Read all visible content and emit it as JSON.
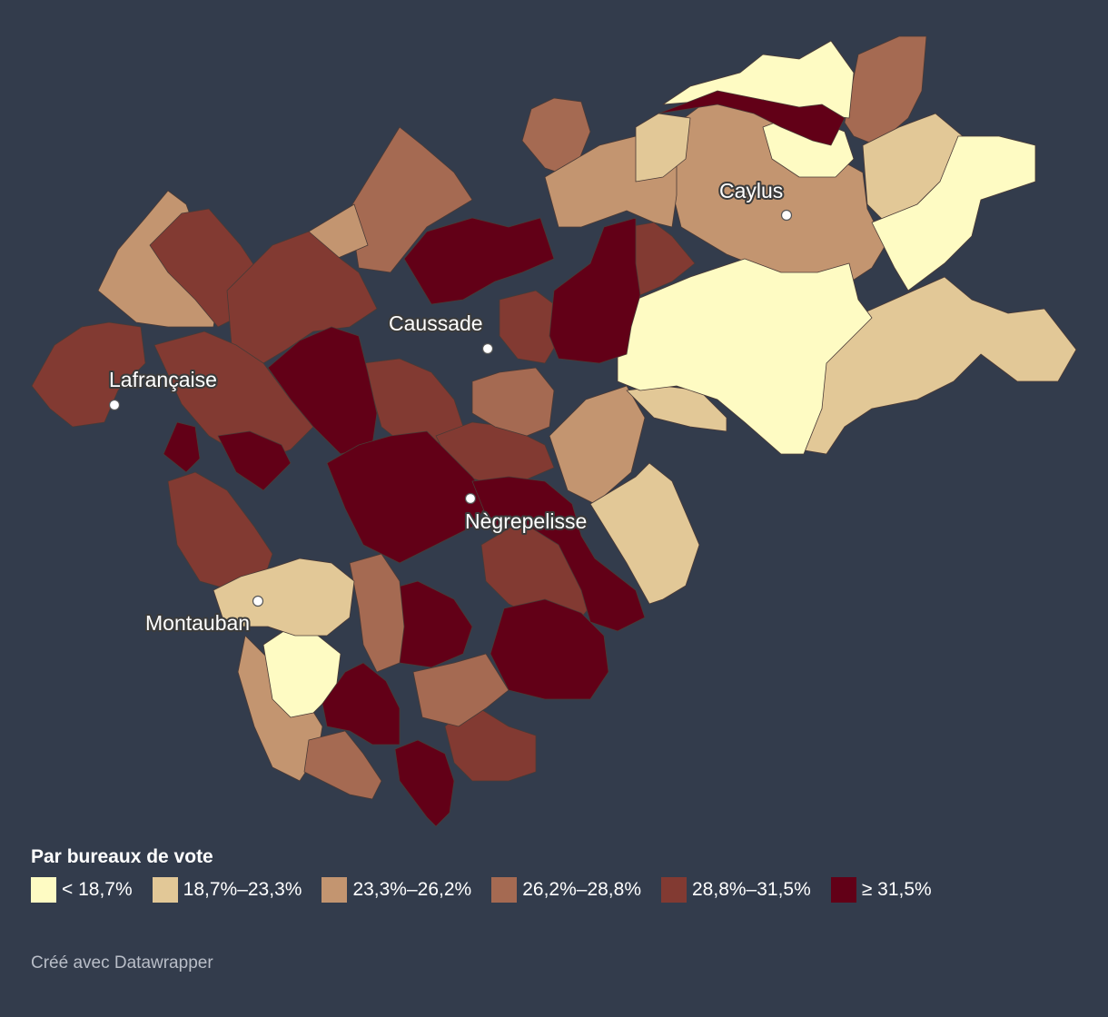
{
  "legend": {
    "title": "Par bureaux de vote",
    "items": [
      {
        "label": "< 18,7%",
        "color": "#fefbc3"
      },
      {
        "label": "18,7%–23,3%",
        "color": "#e2c897"
      },
      {
        "label": "23,3%–26,2%",
        "color": "#c39570"
      },
      {
        "label": "26,2%–28,8%",
        "color": "#a56a52"
      },
      {
        "label": "28,8%–31,5%",
        "color": "#823a32"
      },
      {
        "label": "≥ 31,5%",
        "color": "#620017"
      }
    ]
  },
  "cities": [
    {
      "name": "Caylus"
    },
    {
      "name": "Caussade"
    },
    {
      "name": "Lafrançaise"
    },
    {
      "name": "Nègrepelisse"
    },
    {
      "name": "Montauban"
    }
  ],
  "credit": "Créé avec Datawrapper"
}
